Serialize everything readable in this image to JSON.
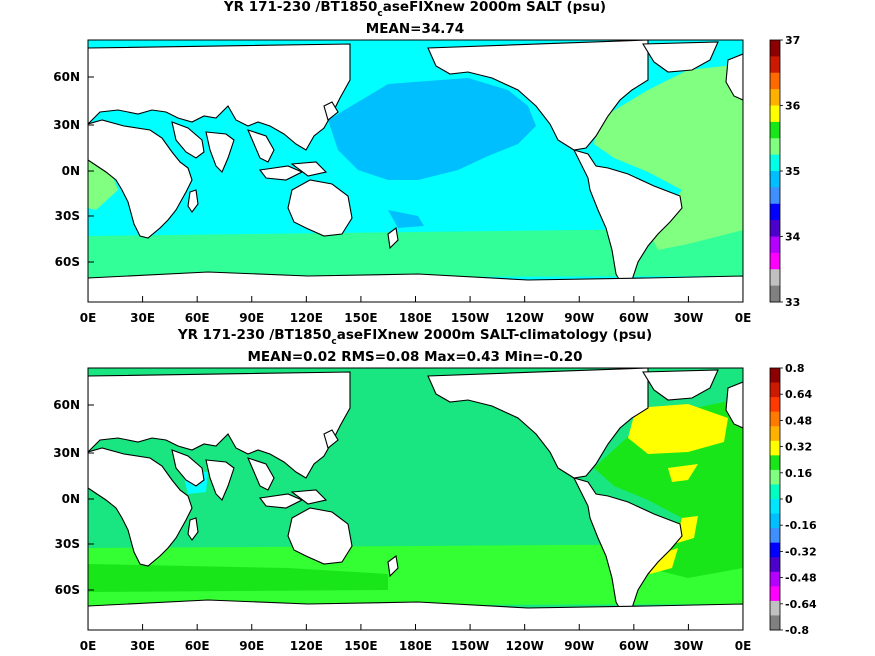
{
  "panels": [
    {
      "title": "YR 171-230 /BT1850",
      "title_sub": "c",
      "title_rest": "aseFIXnew 2000m SALT (psu)",
      "stats": "MEAN=34.74",
      "x_ticks": [
        "0E",
        "30E",
        "60E",
        "90E",
        "120E",
        "150E",
        "180E",
        "150W",
        "120W",
        "90W",
        "60W",
        "30W",
        "0E"
      ],
      "y_ticks": [
        "60N",
        "30N",
        "0N",
        "30S",
        "60S"
      ],
      "colorbar_labels": [
        "37",
        "36",
        "35",
        "34",
        "33"
      ],
      "colorbar_colors": [
        "#8b0000",
        "#cc1a00",
        "#ff6a00",
        "#ffb000",
        "#ffff00",
        "#19e619",
        "#80ff80",
        "#00ffe6",
        "#00bfff",
        "#3f8fff",
        "#0000ff",
        "#4b00cc",
        "#b400ff",
        "#ff00ff",
        "#c0c0c0",
        "#808080"
      ],
      "ocean_colors": {
        "base": "#00ffff",
        "pacific": "#00bfff",
        "atlantic": "#80ff80",
        "southern": "#33ff99"
      }
    },
    {
      "title": "YR 171-230 /BT1850",
      "title_sub": "c",
      "title_rest": "aseFIXnew 2000m SALT-climatology (psu)",
      "stats": "MEAN=0.02   RMS=0.08   Max=0.43   Min=-0.20",
      "x_ticks": [
        "0E",
        "30E",
        "60E",
        "90E",
        "120E",
        "150E",
        "180E",
        "150W",
        "120W",
        "90W",
        "60W",
        "30W",
        "0E"
      ],
      "y_ticks": [
        "60N",
        "30N",
        "0N",
        "30S",
        "60S"
      ],
      "colorbar_labels": [
        "0.8",
        "0.64",
        "0.48",
        "0.32",
        "0.16",
        "0",
        "-0.16",
        "-0.32",
        "-0.48",
        "-0.64",
        "-0.8"
      ],
      "colorbar_colors": [
        "#8b0000",
        "#cc1a00",
        "#ff3a00",
        "#ff7a00",
        "#ffb000",
        "#ffff00",
        "#19e619",
        "#80ff80",
        "#00ffc0",
        "#00e6ff",
        "#00bfff",
        "#3f8fff",
        "#0000ff",
        "#4b00cc",
        "#b400ff",
        "#ff00ff",
        "#c0c0c0",
        "#808080"
      ],
      "ocean_colors": {
        "base": "#19e680",
        "pacific": "#19e680",
        "atlantic": "#19e619",
        "southern": "#33ff33",
        "hot": "#ffff00"
      }
    }
  ]
}
